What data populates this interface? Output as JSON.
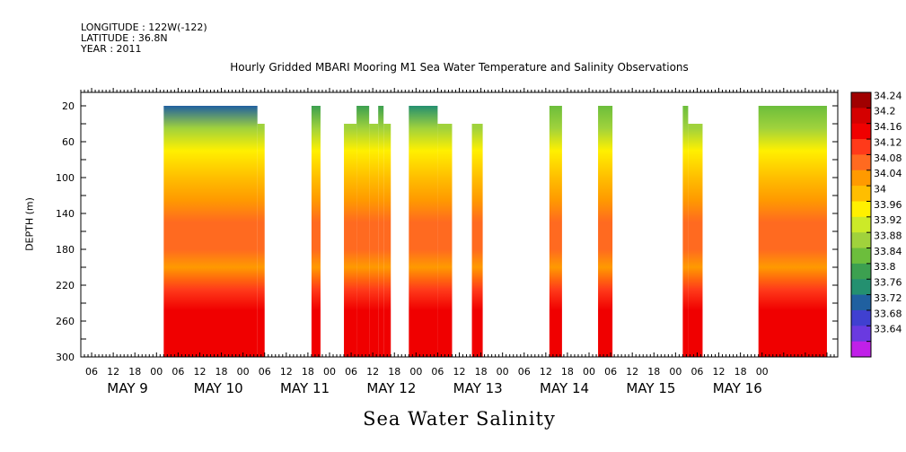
{
  "meta": {
    "longitude": "LONGITUDE : 122W(-122)",
    "latitude": "LATITUDE : 36.8N",
    "year": "YEAR : 2011"
  },
  "chart_data": {
    "type": "heatmap",
    "title": "Hourly Gridded MBARI Mooring M1 Sea Water Temperature and Salinity Observations",
    "xlabel": "Sea Water Salinity",
    "ylabel": "DEPTH (m)",
    "x_unit": "hours since May 9 00:00, 2011",
    "xlim": [
      -21,
      189
    ],
    "ylim": [
      300,
      5
    ],
    "hour_ticks": [
      "06",
      "12",
      "18",
      "00",
      "06",
      "12",
      "18",
      "00",
      "06",
      "12",
      "18",
      "00",
      "06",
      "12",
      "18",
      "00",
      "06",
      "12",
      "18",
      "00",
      "06",
      "12",
      "18",
      "00",
      "06",
      "12",
      "18",
      "00",
      "06",
      "12",
      "18",
      "00"
    ],
    "day_labels": [
      "MAY  9",
      "MAY 10",
      "MAY 11",
      "MAY 12",
      "MAY 13",
      "MAY 14",
      "MAY 15",
      "MAY 16"
    ],
    "y_ticks": [
      20,
      60,
      100,
      140,
      180,
      220,
      260,
      300
    ],
    "colorbar": {
      "levels": [
        "34.24",
        "34.2",
        "34.16",
        "34.12",
        "34.08",
        "34.04",
        "34",
        "33.96",
        "33.92",
        "33.88",
        "33.84",
        "33.8",
        "33.76",
        "33.72",
        "33.68",
        "33.64"
      ],
      "colors": [
        "#a00000",
        "#d40000",
        "#f00000",
        "#ff3a1a",
        "#ff6a20",
        "#ff9a00",
        "#ffbe00",
        "#fff000",
        "#ccea28",
        "#a0d23c",
        "#6cbe3c",
        "#3ca050",
        "#249070",
        "#2060a0",
        "#4040d0",
        "#6a3ae0",
        "#c020e8"
      ]
    },
    "segments": [
      {
        "start": 2,
        "end": 28,
        "surface_depth": 20,
        "surface_salinity": 33.74
      },
      {
        "start": 28,
        "end": 30,
        "surface_depth": 40,
        "surface_salinity": 33.82
      },
      {
        "start": 43,
        "end": 45.5,
        "surface_depth": 20,
        "surface_salinity": 33.82
      },
      {
        "start": 52,
        "end": 55.5,
        "surface_depth": 40,
        "surface_salinity": 33.84
      },
      {
        "start": 55.5,
        "end": 59,
        "surface_depth": 20,
        "surface_salinity": 33.84
      },
      {
        "start": 59,
        "end": 61.5,
        "surface_depth": 40,
        "surface_salinity": 33.86
      },
      {
        "start": 61.5,
        "end": 63,
        "surface_depth": 20,
        "surface_salinity": 33.84
      },
      {
        "start": 63,
        "end": 65,
        "surface_depth": 40,
        "surface_salinity": 33.86
      },
      {
        "start": 70,
        "end": 78,
        "surface_depth": 20,
        "surface_salinity": 33.8
      },
      {
        "start": 78,
        "end": 82,
        "surface_depth": 40,
        "surface_salinity": 33.84
      },
      {
        "start": 87.5,
        "end": 90.5,
        "surface_depth": 40,
        "surface_salinity": 33.86
      },
      {
        "start": 109,
        "end": 112.5,
        "surface_depth": 20,
        "surface_salinity": 33.86
      },
      {
        "start": 122.5,
        "end": 126.5,
        "surface_depth": 20,
        "surface_salinity": 33.86
      },
      {
        "start": 146,
        "end": 147.5,
        "surface_depth": 20,
        "surface_salinity": 33.86
      },
      {
        "start": 147.5,
        "end": 151.5,
        "surface_depth": 40,
        "surface_salinity": 33.86
      },
      {
        "start": 167,
        "end": 186,
        "surface_depth": 20,
        "surface_salinity": 33.86
      }
    ]
  }
}
